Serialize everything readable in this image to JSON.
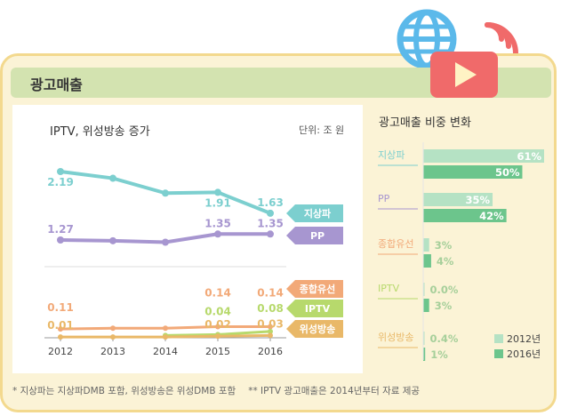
{
  "header": {
    "title": "광고매출"
  },
  "left_chart": {
    "title": "IPTV, 위성방송 증가",
    "unit": "단위: 조 원"
  },
  "right_chart": {
    "title": "광고매출 비중 변화"
  },
  "footnotes": {
    "note1": "* 지상파는 지상파DMB 포함, 위성방송은 위성DMB 포함",
    "note2": "** IPTV 광고매출은 2014년부터 자료 제공"
  },
  "colors": {
    "terrestrial": "#7ccfcf",
    "pp": "#a796d0",
    "cable": "#f2a978",
    "iptv": "#b7d96c",
    "satellite": "#e9b868",
    "bar2012": "#b5e2c4",
    "bar2016": "#6cc58c"
  },
  "icons": [
    "globe-icon",
    "wifi-icon",
    "play-icon"
  ],
  "chart_data": [
    {
      "type": "line",
      "title": "IPTV, 위성방송 증가",
      "unit": "단위: 조 원",
      "x": [
        "2012",
        "2013",
        "2014",
        "2015",
        "2016"
      ],
      "series": [
        {
          "name": "지상파",
          "color": "#7ccfcf",
          "values": [
            2.19,
            2.1,
            1.9,
            1.91,
            1.63
          ],
          "labels": [
            "2.19",
            "",
            "",
            "1.91",
            "1.63"
          ]
        },
        {
          "name": "PP",
          "color": "#a796d0",
          "values": [
            1.27,
            1.26,
            1.24,
            1.35,
            1.35
          ],
          "labels": [
            "1.27",
            "",
            "",
            "1.35",
            "1.35"
          ]
        },
        {
          "name": "종합유선",
          "color": "#f2a978",
          "values": [
            0.11,
            0.12,
            0.12,
            0.14,
            0.14
          ],
          "labels": [
            "0.11",
            "",
            "",
            "0.14",
            "0.14"
          ]
        },
        {
          "name": "IPTV",
          "color": "#b7d96c",
          "values": [
            null,
            null,
            0.03,
            0.04,
            0.08
          ],
          "labels": [
            "",
            "",
            "",
            "0.04",
            "0.08"
          ]
        },
        {
          "name": "위성방송",
          "color": "#e9b868",
          "values": [
            0.01,
            0.01,
            0.01,
            0.02,
            0.03
          ],
          "labels": [
            "0.01",
            "",
            "",
            "0.02",
            "0.03"
          ]
        }
      ]
    },
    {
      "type": "bar",
      "title": "광고매출 비중 변화",
      "categories": [
        "지상파",
        "PP",
        "종합유선",
        "IPTV",
        "위성방송"
      ],
      "category_colors": [
        "#7ccfcf",
        "#a796d0",
        "#f2a978",
        "#b7d96c",
        "#e9b868"
      ],
      "series": [
        {
          "name": "2012년",
          "color": "#b5e2c4",
          "values": [
            61,
            35,
            3,
            0.0,
            0.4
          ],
          "labels": [
            "61%",
            "35%",
            "3%",
            "0.0%",
            "0.4%"
          ]
        },
        {
          "name": "2016년",
          "color": "#6cc58c",
          "values": [
            50,
            42,
            4,
            3,
            1
          ],
          "labels": [
            "50%",
            "42%",
            "4%",
            "3%",
            "1%"
          ]
        }
      ]
    }
  ]
}
